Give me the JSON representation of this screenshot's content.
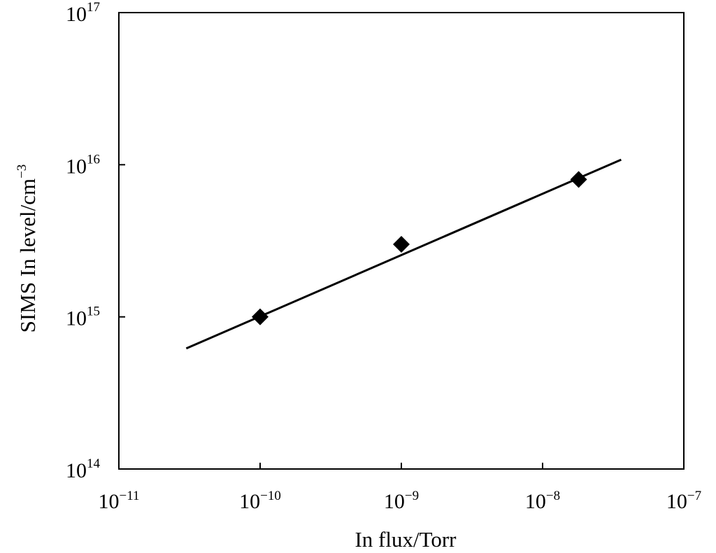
{
  "chart_data": {
    "type": "scatter",
    "title": "",
    "xlabel": "In flux/Torr",
    "ylabel_base": "SIMS In level/cm",
    "ylabel_exp": "−3",
    "x_scale": "log",
    "y_scale": "log",
    "xlim": [
      1e-11,
      1e-07
    ],
    "ylim": [
      100000000000000.0,
      1e+17
    ],
    "grid": false,
    "legend": "none",
    "x_ticks": [
      {
        "base": "10",
        "exp": "−11",
        "value": 1e-11
      },
      {
        "base": "10",
        "exp": "−10",
        "value": 1e-10
      },
      {
        "base": "10",
        "exp": "−9",
        "value": 1e-09
      },
      {
        "base": "10",
        "exp": "−8",
        "value": 1e-08
      },
      {
        "base": "10",
        "exp": "−7",
        "value": 1e-07
      }
    ],
    "y_ticks": [
      {
        "base": "10",
        "exp": "14",
        "value": 100000000000000.0
      },
      {
        "base": "10",
        "exp": "15",
        "value": 1000000000000000.0
      },
      {
        "base": "10",
        "exp": "16",
        "value": 1e+16
      },
      {
        "base": "10",
        "exp": "17",
        "value": 1e+17
      }
    ],
    "points": [
      {
        "x": 1e-10,
        "y": 1000000000000000.0
      },
      {
        "x": 1e-09,
        "y": 3000000000000000.0
      },
      {
        "x": 1.8e-08,
        "y": 8000000000000000.0
      }
    ],
    "fit_line": {
      "x": [
        3e-11,
        3.6e-08
      ],
      "y": [
        620000000000000.0,
        1.08e+16
      ]
    },
    "marker": "diamond",
    "color": "#000000"
  }
}
